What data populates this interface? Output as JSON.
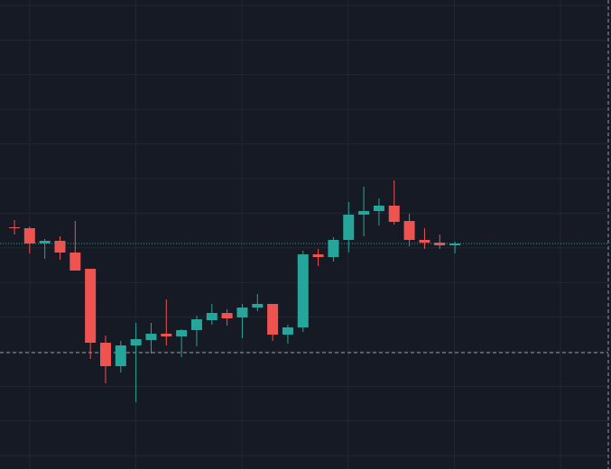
{
  "chart_data": {
    "type": "candlestick",
    "categories": [
      null,
      null,
      null,
      null,
      null,
      null,
      null,
      null,
      null,
      null,
      null,
      null,
      null,
      null,
      null,
      null,
      null,
      null,
      null,
      null,
      null,
      null,
      null,
      null,
      null,
      null,
      null,
      null,
      null,
      null
    ],
    "open": [
      268,
      267,
      250,
      253,
      240,
      222,
      140,
      114,
      137,
      143,
      150,
      147,
      154,
      165,
      173,
      168,
      179,
      183,
      149,
      157,
      238,
      235,
      254,
      282,
      286,
      292,
      275,
      254,
      251,
      248
    ],
    "high": [
      276,
      269,
      255,
      258,
      275,
      222,
      148,
      142,
      162,
      162,
      188,
      155,
      170,
      183,
      177,
      183,
      194,
      183,
      160,
      242,
      244,
      257,
      296,
      313,
      300,
      320,
      283,
      267,
      260,
      252
    ],
    "low": [
      260,
      239,
      233,
      232,
      220,
      122,
      95,
      107,
      74,
      128,
      137,
      124,
      136,
      160,
      159,
      145,
      175,
      142,
      139,
      152,
      225,
      230,
      240,
      258,
      270,
      271,
      247,
      244,
      244,
      239
    ],
    "close": [
      267,
      250,
      253,
      240,
      220,
      140,
      114,
      137,
      144,
      150,
      147,
      154,
      166,
      173,
      167,
      179,
      183,
      149,
      157,
      238,
      235,
      254,
      282,
      286,
      292,
      274,
      254,
      251,
      248,
      250
    ],
    "up_color": "#26a69a",
    "down_color": "#ef5350",
    "ylim": [
      0,
      520
    ],
    "grid": true
  }
}
